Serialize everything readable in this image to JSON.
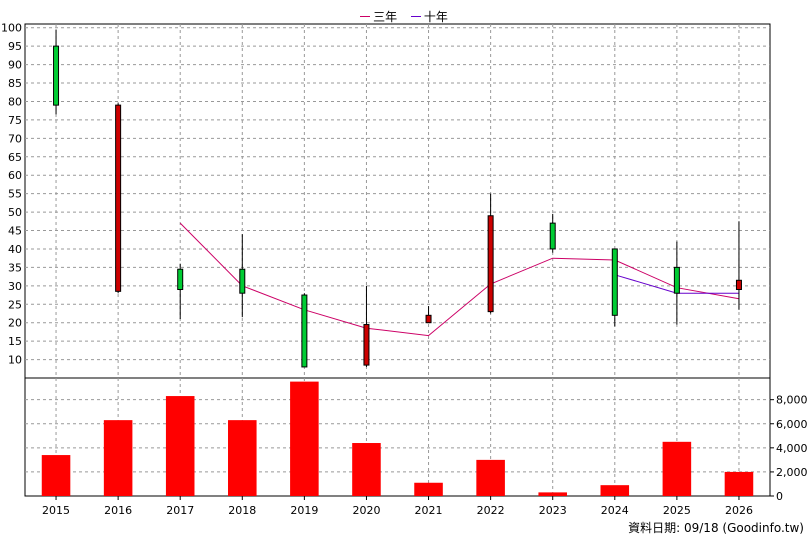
{
  "chart_data": {
    "type": "candlestick",
    "categories": [
      "2015",
      "2016",
      "2017",
      "2018",
      "2019",
      "2020",
      "2021",
      "2022",
      "2023",
      "2024",
      "2025",
      "2026"
    ],
    "price_axis": {
      "ylim": [
        5,
        101
      ],
      "ticks": [
        10,
        15,
        20,
        25,
        30,
        35,
        40,
        45,
        50,
        55,
        60,
        65,
        70,
        75,
        80,
        85,
        90,
        95,
        100
      ]
    },
    "volume_axis": {
      "ylim": [
        0,
        9800
      ],
      "ticks": [
        0,
        2000,
        4000,
        6000,
        8000
      ],
      "tick_labels": [
        "0",
        "2,000",
        "4,000",
        "6,000",
        "8,000"
      ]
    },
    "candles": [
      {
        "year": "2015",
        "open": 79,
        "high": 99.5,
        "low": 76.5,
        "close": 95
      },
      {
        "year": "2016",
        "open": 79,
        "high": 79.5,
        "low": 28,
        "close": 28.5
      },
      {
        "year": "2017",
        "open": 29,
        "high": 36,
        "low": 21,
        "close": 34.5
      },
      {
        "year": "2018",
        "open": 28,
        "high": 44,
        "low": 21.5,
        "close": 34.5
      },
      {
        "year": "2019",
        "open": 8,
        "high": 28,
        "low": 8,
        "close": 27.5
      },
      {
        "year": "2020",
        "open": 19.5,
        "high": 30,
        "low": 8,
        "close": 8.5
      },
      {
        "year": "2021",
        "open": 22,
        "high": 24.5,
        "low": 20,
        "close": 20
      },
      {
        "year": "2022",
        "open": 49,
        "high": 55,
        "low": 22.5,
        "close": 23
      },
      {
        "year": "2023",
        "open": 40,
        "high": 49.5,
        "low": 39,
        "close": 47
      },
      {
        "year": "2024",
        "open": 22,
        "high": 40,
        "low": 19,
        "close": 40
      },
      {
        "year": "2025",
        "open": 28,
        "high": 42,
        "low": 19.5,
        "close": 35
      },
      {
        "year": "2026",
        "open": 31.5,
        "high": 47.5,
        "low": 23.5,
        "close": 29
      }
    ],
    "volume": [
      3400,
      6300,
      8300,
      6300,
      9500,
      4400,
      1100,
      3000,
      300,
      900,
      4500,
      2000
    ],
    "series": [
      {
        "name": "三年",
        "color": "#cc0066",
        "values": [
          null,
          null,
          47,
          30,
          23.5,
          18.5,
          16.5,
          30.5,
          37.5,
          37,
          29.5,
          26.5
        ]
      },
      {
        "name": "十年",
        "color": "#6600cc",
        "values": [
          null,
          null,
          null,
          null,
          null,
          null,
          null,
          null,
          null,
          33,
          28,
          28
        ]
      }
    ],
    "colors": {
      "up": "#00cc33",
      "down": "#cc0000",
      "volume": "#ff0000",
      "grid": "#999999"
    },
    "legend_position": "top-center",
    "grid": true
  },
  "legend": {
    "item1": "三年",
    "item2": "十年"
  },
  "footnote": "資料日期: 09/18 (Goodinfo.tw)"
}
